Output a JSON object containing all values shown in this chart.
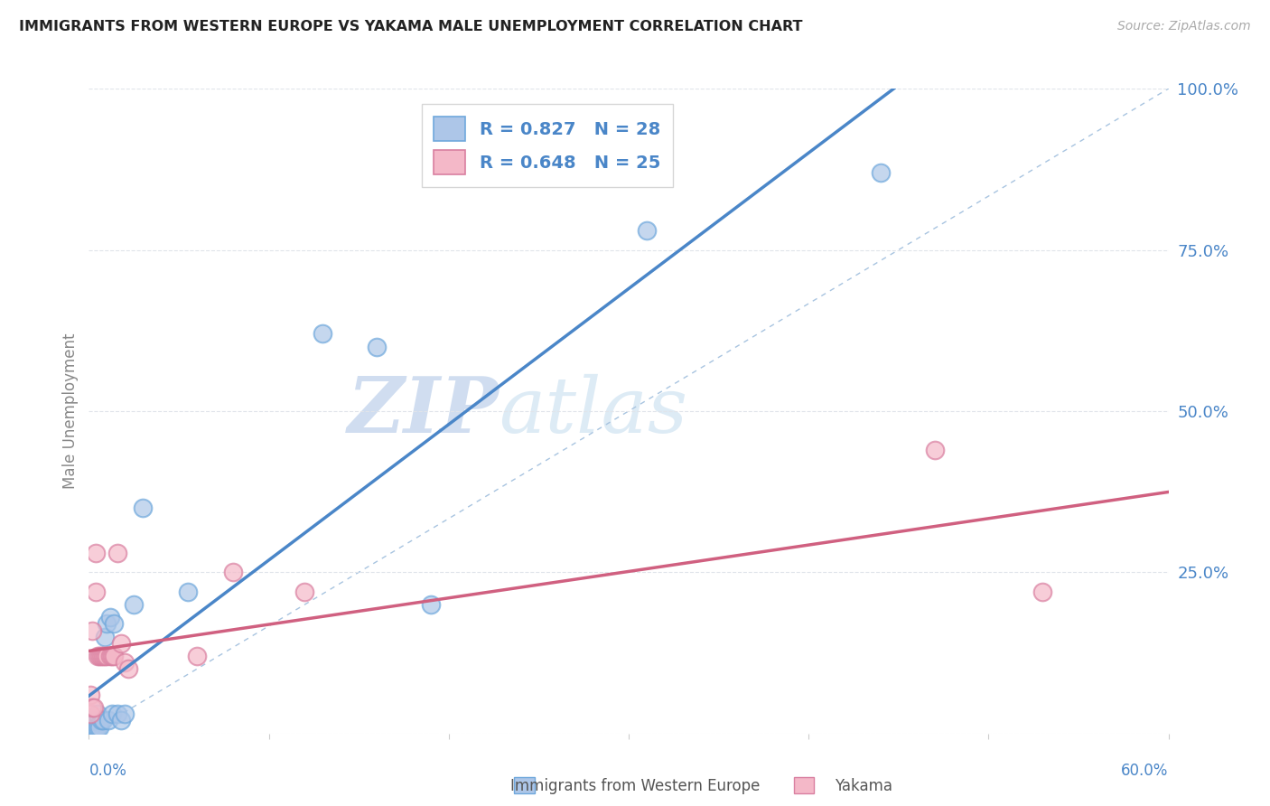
{
  "title": "IMMIGRANTS FROM WESTERN EUROPE VS YAKAMA MALE UNEMPLOYMENT CORRELATION CHART",
  "source": "Source: ZipAtlas.com",
  "ylabel": "Male Unemployment",
  "legend_label1": "Immigrants from Western Europe",
  "legend_label2": "Yakama",
  "R1": 0.827,
  "N1": 28,
  "R2": 0.648,
  "N2": 25,
  "xlim": [
    0.0,
    0.6
  ],
  "ylim": [
    0.0,
    1.0
  ],
  "watermark_zip": "ZIP",
  "watermark_atlas": "atlas",
  "blue_color": "#adc6e8",
  "blue_edge": "#6fa8dc",
  "pink_color": "#f4b8c8",
  "pink_edge": "#d97fa0",
  "blue_line_color": "#4a86c8",
  "pink_line_color": "#d06080",
  "diag_color": "#a8c4e0",
  "right_tick_color": "#4a86c8",
  "grid_color": "#e0e4ea",
  "title_color": "#222222",
  "ylabel_color": "#888888",
  "blue_scatter_x": [
    0.001,
    0.002,
    0.002,
    0.003,
    0.003,
    0.004,
    0.005,
    0.005,
    0.006,
    0.007,
    0.008,
    0.009,
    0.01,
    0.011,
    0.012,
    0.013,
    0.014,
    0.016,
    0.018,
    0.02,
    0.025,
    0.03,
    0.055,
    0.13,
    0.16,
    0.19,
    0.31,
    0.44
  ],
  "blue_scatter_y": [
    0.01,
    0.01,
    0.02,
    0.01,
    0.02,
    0.01,
    0.01,
    0.03,
    0.01,
    0.02,
    0.02,
    0.15,
    0.17,
    0.02,
    0.18,
    0.03,
    0.17,
    0.03,
    0.02,
    0.03,
    0.2,
    0.35,
    0.22,
    0.62,
    0.6,
    0.2,
    0.78,
    0.87
  ],
  "pink_scatter_x": [
    0.001,
    0.001,
    0.002,
    0.002,
    0.003,
    0.004,
    0.004,
    0.005,
    0.006,
    0.007,
    0.008,
    0.009,
    0.01,
    0.012,
    0.013,
    0.014,
    0.016,
    0.018,
    0.02,
    0.022,
    0.06,
    0.08,
    0.12,
    0.47,
    0.53
  ],
  "pink_scatter_y": [
    0.03,
    0.06,
    0.04,
    0.16,
    0.04,
    0.22,
    0.28,
    0.12,
    0.12,
    0.12,
    0.12,
    0.12,
    0.12,
    0.12,
    0.12,
    0.12,
    0.28,
    0.14,
    0.11,
    0.1,
    0.12,
    0.25,
    0.22,
    0.44,
    0.22
  ],
  "blue_regline": [
    0.0,
    0.6,
    -0.04,
    0.91
  ],
  "pink_regline": [
    0.0,
    0.6,
    0.06,
    0.36
  ]
}
